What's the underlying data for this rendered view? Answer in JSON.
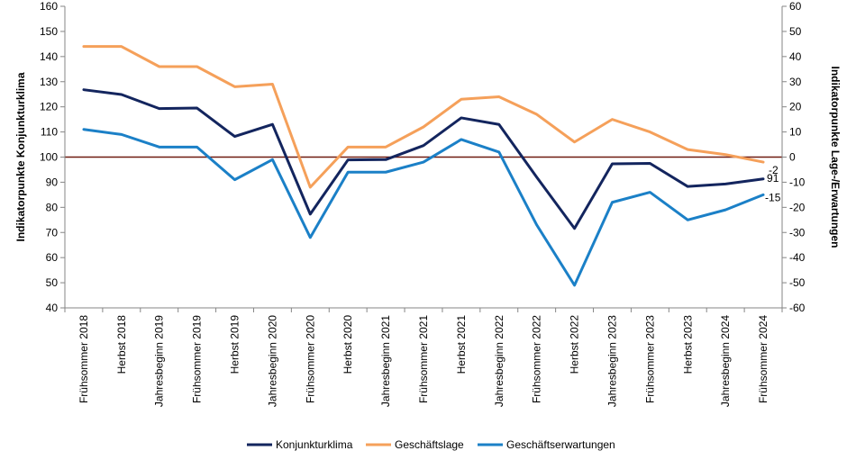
{
  "chart_data": {
    "type": "line",
    "title": "",
    "ylabel": "Indikatorpunkte Konjunkturklima",
    "y2label": "Indikatorpunkte Lage-/Erwartungen",
    "ylim": [
      40,
      160
    ],
    "y2lim": [
      -60,
      60
    ],
    "yticks": [
      40,
      50,
      60,
      70,
      80,
      90,
      100,
      110,
      120,
      130,
      140,
      150,
      160
    ],
    "y2ticks": [
      -60,
      -50,
      -40,
      -30,
      -20,
      -10,
      0,
      10,
      20,
      30,
      40,
      50,
      60
    ],
    "categories": [
      "Frühsommer 2018",
      "Herbst 2018",
      "Jahresbeginn 2019",
      "Frühsommer 2019",
      "Herbst 2019",
      "Jahresbeginn 2020",
      "Frühsommer 2020",
      "Herbst 2020",
      "Jahresbeginn 2021",
      "Frühsommer 2021",
      "Herbst 2021",
      "Jahresbeginn 2022",
      "Frühsommer 2022",
      "Herbst 2022",
      "Jahresbeginn 2023",
      "Frühsommer 2023",
      "Herbst 2023",
      "Jahresbeginn 2024",
      "Frühsommer 2024"
    ],
    "grid": false,
    "legend_position": "bottom",
    "series": [
      {
        "name": "Konjunkturklima",
        "axis": "left",
        "color": "#13255e",
        "values": [
          126.8,
          124.9,
          119.3,
          119.5,
          108.2,
          113.0,
          77.3,
          98.9,
          99.0,
          104.6,
          115.6,
          113.0,
          92.0,
          71.6,
          97.3,
          97.5,
          88.3,
          89.3,
          91.3
        ],
        "end_label": "91"
      },
      {
        "name": "Geschäftslage",
        "axis": "right",
        "color": "#f5a05a",
        "values": [
          44,
          44,
          36,
          36,
          28,
          29,
          -12,
          4,
          4,
          12,
          23,
          24,
          17,
          6,
          15,
          10,
          3,
          1,
          -2
        ],
        "end_label": "-2"
      },
      {
        "name": "Geschäftserwartungen",
        "axis": "right",
        "color": "#1b80c7",
        "values": [
          11,
          9,
          4,
          4,
          -9,
          -1,
          -32,
          -6,
          -6,
          -2,
          7,
          2,
          -27,
          -51,
          -18,
          -14,
          -25,
          -21,
          -15
        ],
        "end_label": "-15"
      }
    ],
    "reference_line": {
      "axis": "right",
      "value": 0,
      "color": "#6e1a10"
    }
  }
}
